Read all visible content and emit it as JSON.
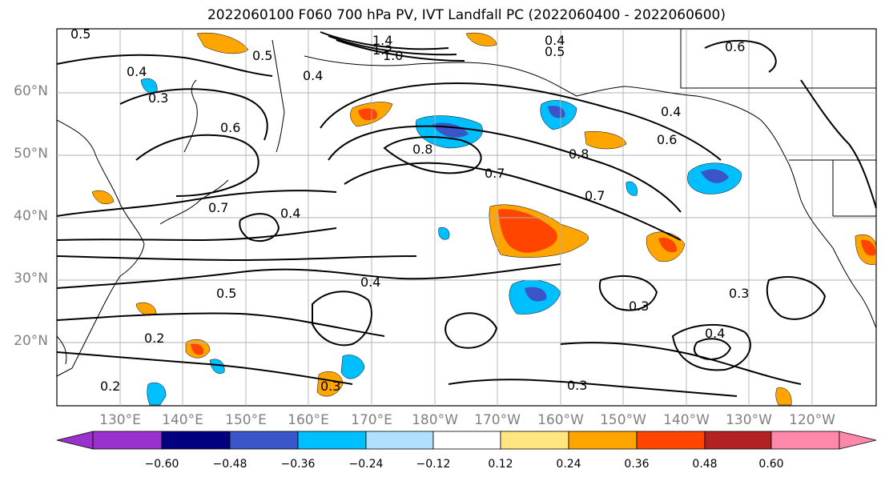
{
  "title": "2022060100 F060 700 hPa PV, IVT Landfall PC (2022060400 - 2022060600)",
  "lat_ticks": [
    "60°N",
    "50°N",
    "40°N",
    "30°N",
    "20°N"
  ],
  "lon_ticks": [
    "130°E",
    "140°E",
    "150°E",
    "160°E",
    "170°E",
    "180°W",
    "170°W",
    "160°W",
    "150°W",
    "140°W",
    "130°W",
    "120°W"
  ],
  "contour_labels": [
    "0.5",
    "0.4",
    "0.3",
    "0.6",
    "0.7",
    "0.8",
    "0.2",
    "1.4",
    "1.2",
    "1.0",
    "0.8"
  ],
  "colorbar": {
    "ticks": [
      "−0.60",
      "−0.48",
      "−0.36",
      "−0.24",
      "−0.12",
      "0.12",
      "0.24",
      "0.36",
      "0.48",
      "0.60"
    ],
    "colors": [
      "#9932cc",
      "#000080",
      "#3a55c8",
      "#00bfff",
      "#b0e0ff",
      "#ffffff",
      "#ffe680",
      "#ffa500",
      "#ff4500",
      "#b22222",
      "#ff88aa"
    ]
  }
}
